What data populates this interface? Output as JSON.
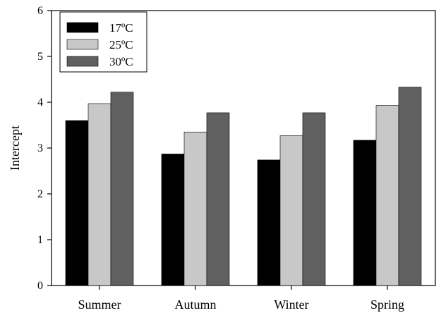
{
  "chart_data": {
    "type": "bar",
    "title": "",
    "xlabel": "",
    "ylabel": "Intercept",
    "ylim": [
      0,
      6
    ],
    "yticks": [
      "0",
      "1",
      "2",
      "3",
      "4",
      "5",
      "6"
    ],
    "categories": [
      "Summer",
      "Autumn",
      "Winter",
      "Spring"
    ],
    "series": [
      {
        "name": "17ºC",
        "color": "#000000",
        "values": [
          3.6,
          2.87,
          2.74,
          3.17
        ]
      },
      {
        "name": "25ºC",
        "color": "#c8c8c8",
        "values": [
          3.97,
          3.35,
          3.27,
          3.93
        ]
      },
      {
        "name": "30ºC",
        "color": "#606060",
        "values": [
          4.22,
          3.77,
          3.77,
          4.33
        ]
      }
    ],
    "legend": "top-left",
    "grid": false
  }
}
